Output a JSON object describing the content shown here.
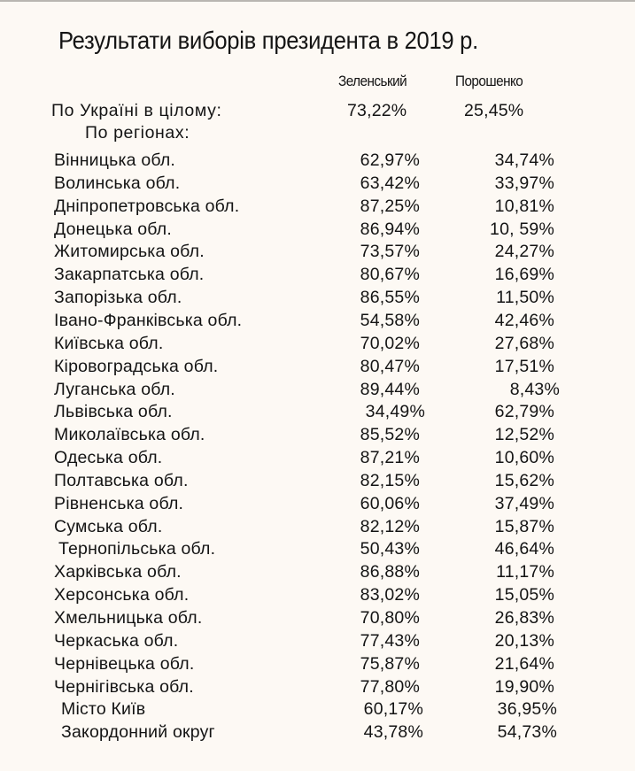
{
  "title": "Результати виборів президента в 2019 р.",
  "columns": {
    "zelensky": "Зеленський",
    "poroshenko": "Порошенко"
  },
  "total": {
    "label": "По  Україні в цілому:",
    "zelensky": "73,22%",
    "poroshenko": "25,45%"
  },
  "regions_label": "По  регіонах:",
  "rows": [
    {
      "region": "Вінницька обл.",
      "zelensky": "62,97%",
      "poroshenko": "34,74%"
    },
    {
      "region": "Волинська обл.",
      "zelensky": "63,42%",
      "poroshenko": "33,97%"
    },
    {
      "region": "Дніпропетровська обл.",
      "zelensky": "87,25%",
      "poroshenko": "10,81%"
    },
    {
      "region": "Донецька обл.",
      "zelensky": "86,94%",
      "poroshenko": "10, 59%"
    },
    {
      "region": "Житомирська обл.",
      "zelensky": "73,57%",
      "poroshenko": "24,27%"
    },
    {
      "region": "Закарпатська обл.",
      "zelensky": "80,67%",
      "poroshenko": "16,69%"
    },
    {
      "region": "Запорізька обл.",
      "zelensky": "86,55%",
      "poroshenko": "11,50%"
    },
    {
      "region": "Івано-Франківська обл.",
      "zelensky": "54,58%",
      "poroshenko": "42,46%"
    },
    {
      "region": "Київська обл.",
      "zelensky": "70,02%",
      "poroshenko": "27,68%"
    },
    {
      "region": "Кіровоградська обл.",
      "zelensky": "80,47%",
      "poroshenko": "17,51%"
    },
    {
      "region": "Луганська обл.",
      "zelensky": "89,44%",
      "poroshenko": "8,43%"
    },
    {
      "region": "Львівська обл.",
      "zelensky": "34,49%",
      "poroshenko": "62,79%"
    },
    {
      "region": "Миколаївська обл.",
      "zelensky": "85,52%",
      "poroshenko": "12,52%"
    },
    {
      "region": "Одеська обл.",
      "zelensky": "87,21%",
      "poroshenko": "10,60%"
    },
    {
      "region": "Полтавська обл.",
      "zelensky": "82,15%",
      "poroshenko": "15,62%"
    },
    {
      "region": "Рівненська обл.",
      "zelensky": "60,06%",
      "poroshenko": "37,49%"
    },
    {
      "region": "Сумська обл.",
      "zelensky": "82,12%",
      "poroshenko": "15,87%"
    },
    {
      "region": "Тернопільська обл.",
      "zelensky": "50,43%",
      "poroshenko": "46,64%"
    },
    {
      "region": "Харківська обл.",
      "zelensky": "86,88%",
      "poroshenko": "11,17%"
    },
    {
      "region": "Херсонська обл.",
      "zelensky": "83,02%",
      "poroshenko": "15,05%"
    },
    {
      "region": "Хмельницька обл.",
      "zelensky": "70,80%",
      "poroshenko": "26,83%"
    },
    {
      "region": "Черкаська обл.",
      "zelensky": "77,43%",
      "poroshenko": "20,13%"
    },
    {
      "region": "Чернівецька обл.",
      "zelensky": "75,87%",
      "poroshenko": "21,64%"
    },
    {
      "region": "Чернігівська обл.",
      "zelensky": "77,80%",
      "poroshenko": "19,90%"
    },
    {
      "region": "Місто Київ",
      "zelensky": "60,17%",
      "poroshenko": "36,95%"
    },
    {
      "region": "Закордонний округ",
      "zelensky": "43,78%",
      "poroshenko": "54,73%"
    }
  ]
}
